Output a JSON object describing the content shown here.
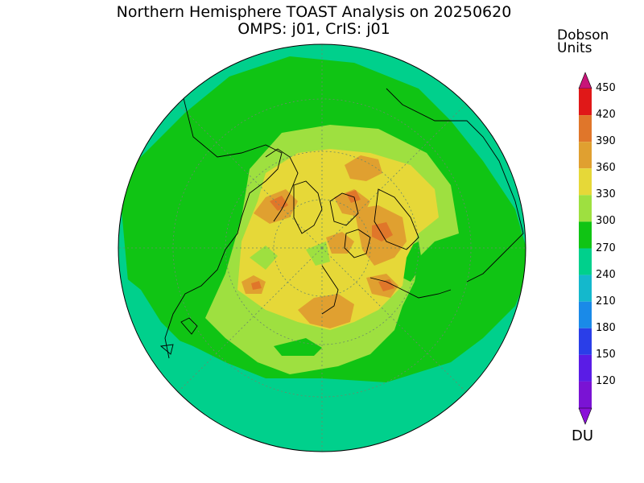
{
  "title": {
    "line1": "Northern Hemisphere TOAST Analysis on 20250620",
    "line2": "OMPS: j01, CrIS: j01"
  },
  "colorbar": {
    "title_line1": "Dobson",
    "title_line2": "Units",
    "unit_footer": "DU",
    "levels": [
      {
        "label": "120",
        "color": "#7a13d4"
      },
      {
        "label": "150",
        "color": "#5a1ce6"
      },
      {
        "label": "180",
        "color": "#2a3ee8"
      },
      {
        "label": "210",
        "color": "#1a8ae8"
      },
      {
        "label": "240",
        "color": "#14b8cc"
      },
      {
        "label": "270",
        "color": "#00d08c"
      },
      {
        "label": "300",
        "color": "#10c414"
      },
      {
        "label": "330",
        "color": "#9ee040"
      },
      {
        "label": "360",
        "color": "#e6d838"
      },
      {
        "label": "390",
        "color": "#e0a030"
      },
      {
        "label": "420",
        "color": "#e0762a"
      },
      {
        "label": "450",
        "color": "#e01818"
      }
    ],
    "top_cap_color": "#c81478",
    "bottom_cap_color": "#8a10d8"
  },
  "map": {
    "projection": "north-polar-stereographic",
    "outer_color": "#00d08c",
    "graticule": true
  }
}
